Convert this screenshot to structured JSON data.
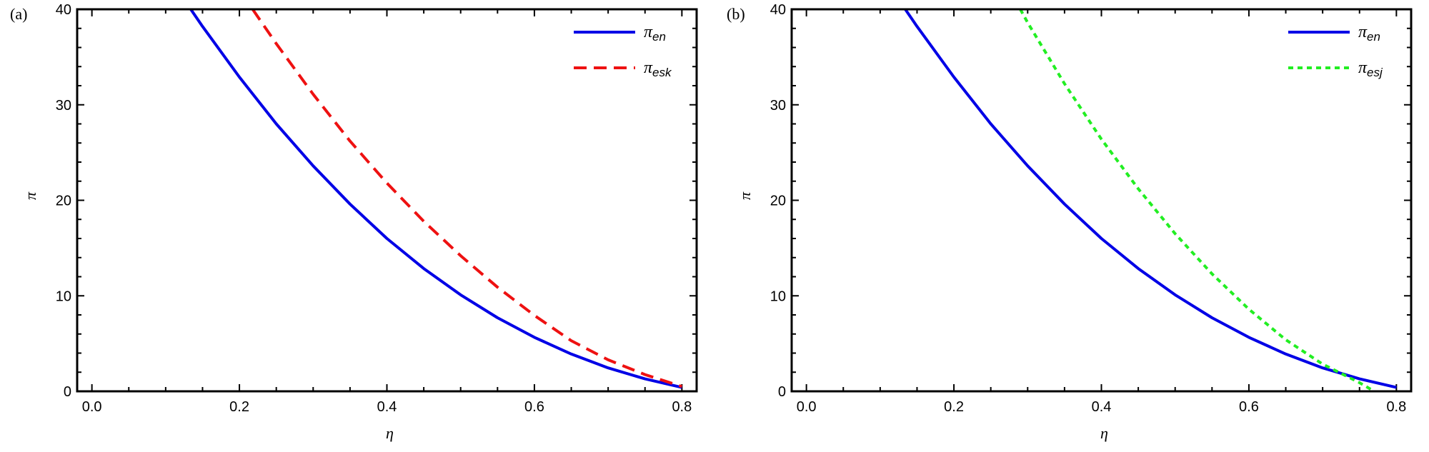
{
  "chart_data": [
    {
      "type": "line",
      "panel_label": "(a)",
      "xlabel": "η",
      "ylabel": "π",
      "xlim": [
        -0.02,
        0.82
      ],
      "ylim": [
        0,
        40
      ],
      "xticks": [
        "0.0",
        "0.2",
        "0.4",
        "0.6",
        "0.8"
      ],
      "yticks": [
        "0",
        "10",
        "20",
        "30",
        "40"
      ],
      "legend_position": "top-right",
      "series": [
        {
          "name": "π_en",
          "legend_symbol": "π",
          "legend_sub": "en",
          "color": "#0000e6",
          "dash": "solid",
          "x": [
            0.134,
            0.15,
            0.2,
            0.25,
            0.3,
            0.35,
            0.4,
            0.45,
            0.5,
            0.55,
            0.6,
            0.65,
            0.7,
            0.75,
            0.8
          ],
          "y": [
            40,
            38.2,
            32.9,
            28.0,
            23.6,
            19.6,
            16.0,
            12.85,
            10.1,
            7.7,
            5.65,
            3.9,
            2.45,
            1.3,
            0.4
          ]
        },
        {
          "name": "π_esk",
          "legend_symbol": "π",
          "legend_sub": "esk",
          "color": "#ee1111",
          "dash": "dashed",
          "x": [
            0.218,
            0.25,
            0.3,
            0.35,
            0.4,
            0.45,
            0.5,
            0.55,
            0.6,
            0.65,
            0.7,
            0.75,
            0.8
          ],
          "y": [
            40,
            36.4,
            31.1,
            26.2,
            21.8,
            17.8,
            14.2,
            10.9,
            7.95,
            5.3,
            3.3,
            1.75,
            0.5
          ]
        }
      ]
    },
    {
      "type": "line",
      "panel_label": "(b)",
      "xlabel": "η",
      "ylabel": "π",
      "xlim": [
        -0.02,
        0.82
      ],
      "ylim": [
        0,
        40
      ],
      "xticks": [
        "0.0",
        "0.2",
        "0.4",
        "0.6",
        "0.8"
      ],
      "yticks": [
        "0",
        "10",
        "20",
        "30",
        "40"
      ],
      "legend_position": "top-right",
      "series": [
        {
          "name": "π_en",
          "legend_symbol": "π",
          "legend_sub": "en",
          "color": "#0000e6",
          "dash": "solid",
          "x": [
            0.134,
            0.15,
            0.2,
            0.25,
            0.3,
            0.35,
            0.4,
            0.45,
            0.5,
            0.55,
            0.6,
            0.65,
            0.7,
            0.75,
            0.8
          ],
          "y": [
            40,
            38.2,
            32.9,
            28.0,
            23.6,
            19.6,
            16.0,
            12.85,
            10.1,
            7.7,
            5.65,
            3.9,
            2.45,
            1.3,
            0.4
          ]
        },
        {
          "name": "π_esj",
          "legend_symbol": "π",
          "legend_sub": "esj",
          "color": "#22ee22",
          "dash": "dotted",
          "x": [
            0.29,
            0.3,
            0.35,
            0.4,
            0.45,
            0.5,
            0.55,
            0.6,
            0.65,
            0.7,
            0.75,
            0.77
          ],
          "y": [
            40,
            38.6,
            32.2,
            26.4,
            21.2,
            16.5,
            12.3,
            8.6,
            5.4,
            2.85,
            0.9,
            0.0
          ]
        }
      ]
    }
  ]
}
